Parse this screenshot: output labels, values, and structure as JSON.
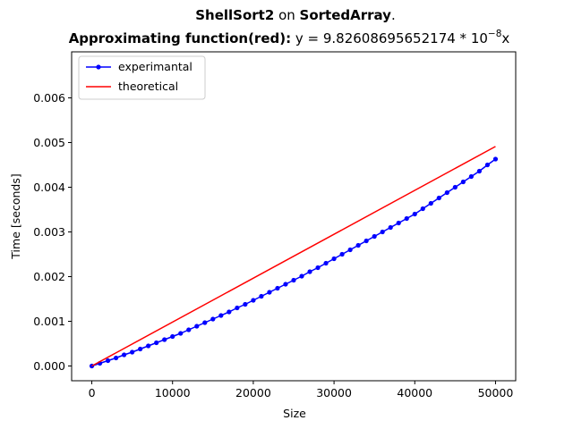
{
  "title": {
    "line1_bold1": "ShellSort2",
    "line1_mid": " on ",
    "line1_bold2": "SortedArray",
    "line1_end": ".",
    "line2_bold": "Approximating function(red):",
    "line2_text": " y = 9.82608695652174 * 10",
    "line2_exp": "−8",
    "line2_end": "x"
  },
  "chart_data": {
    "type": "line",
    "title": "ShellSort2 on SortedArray. Approximating function(red): y = 9.82608695652174 * 10^-8 x",
    "xlabel": "Size",
    "ylabel": "Time [seconds]",
    "xlim": [
      -2500,
      52500
    ],
    "ylim": [
      -0.00033,
      0.00703
    ],
    "xticks": [
      0,
      10000,
      20000,
      30000,
      40000,
      50000
    ],
    "xtick_labels": [
      "0",
      "10000",
      "20000",
      "30000",
      "40000",
      "50000"
    ],
    "yticks": [
      0.0,
      0.001,
      0.002,
      0.003,
      0.004,
      0.005,
      0.006
    ],
    "ytick_labels": [
      "0.000",
      "0.001",
      "0.002",
      "0.003",
      "0.004",
      "0.005",
      "0.006"
    ],
    "legend_position": "top-left",
    "grid": false,
    "series": [
      {
        "name": "experimantal",
        "color": "#0000ff",
        "marker": "dot",
        "x": [
          0,
          1000,
          2000,
          3000,
          4000,
          5000,
          6000,
          7000,
          8000,
          9000,
          10000,
          11000,
          12000,
          13000,
          14000,
          15000,
          16000,
          17000,
          18000,
          19000,
          20000,
          21000,
          22000,
          23000,
          24000,
          25000,
          26000,
          27000,
          28000,
          29000,
          30000,
          31000,
          32000,
          33000,
          34000,
          35000,
          36000,
          37000,
          38000,
          39000,
          40000,
          41000,
          42000,
          43000,
          44000,
          45000,
          46000,
          47000,
          48000,
          49000,
          50000
        ],
        "y": [
          0.0,
          6e-05,
          0.00012,
          0.00018,
          0.00025,
          0.00031,
          0.00038,
          0.00045,
          0.00052,
          0.00059,
          0.00066,
          0.00073,
          0.00081,
          0.00089,
          0.00097,
          0.00105,
          0.00113,
          0.00121,
          0.0013,
          0.00138,
          0.00147,
          0.00156,
          0.00165,
          0.00174,
          0.00183,
          0.00192,
          0.00201,
          0.00211,
          0.0022,
          0.0023,
          0.0024,
          0.0025,
          0.0026,
          0.0027,
          0.0028,
          0.0029,
          0.003,
          0.0031,
          0.0032,
          0.0033,
          0.0034,
          0.00352,
          0.00364,
          0.00376,
          0.00388,
          0.004,
          0.00412,
          0.00424,
          0.00436,
          0.0045,
          0.00463
        ]
      },
      {
        "name": "theoretical",
        "color": "#ff0000",
        "marker": "none",
        "x": [
          0,
          50000
        ],
        "y": [
          0.0,
          0.004913
        ]
      }
    ]
  }
}
